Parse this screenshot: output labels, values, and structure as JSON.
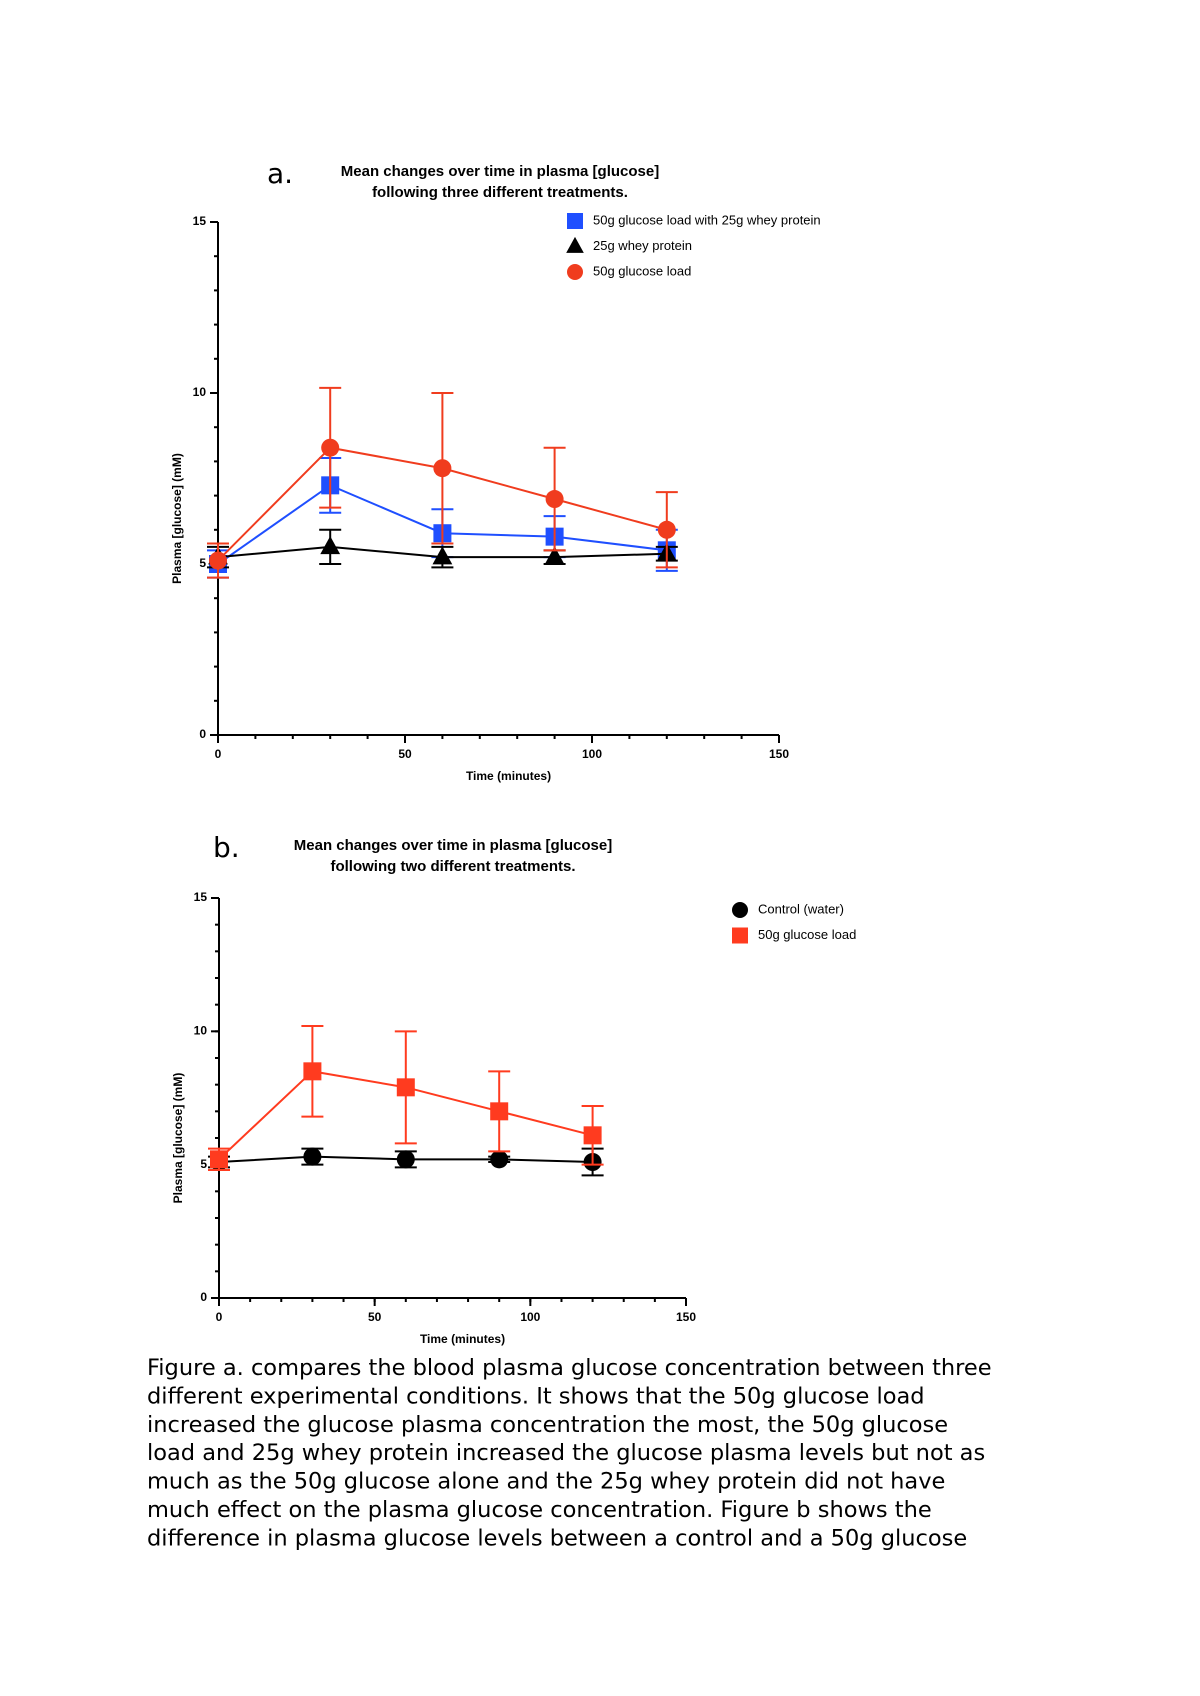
{
  "chart_data": [
    {
      "type": "line",
      "panel": "a.",
      "title": [
        "Mean changes over time in plasma [glucose]",
        "following three different treatments."
      ],
      "x_label": "Time (minutes)",
      "y_label": "Plasma [glucose] (mM)",
      "x": [
        0,
        30,
        60,
        90,
        120
      ],
      "xlim": [
        0,
        150
      ],
      "xticks": [
        0,
        50,
        100,
        150
      ],
      "ylim": [
        0,
        15
      ],
      "yticks": [
        0,
        5,
        10,
        15
      ],
      "legend": "upper right",
      "series": [
        {
          "name": "50g glucose load with 25g whey protein",
          "color": "#1f4fff",
          "marker": "square",
          "values": [
            5.0,
            7.3,
            5.9,
            5.8,
            5.4
          ],
          "errors": [
            0.4,
            0.8,
            0.7,
            0.6,
            0.6
          ]
        },
        {
          "name": "25g whey protein",
          "color": "#000000",
          "marker": "triangle",
          "values": [
            5.2,
            5.5,
            5.2,
            5.2,
            5.3
          ],
          "errors": [
            0.3,
            0.5,
            0.3,
            0.2,
            0.2
          ]
        },
        {
          "name": "50g glucose load",
          "color": "#f03c1e",
          "marker": "circle",
          "values": [
            5.1,
            8.4,
            7.8,
            6.9,
            6.0
          ],
          "errors": [
            0.5,
            1.75,
            2.2,
            1.5,
            1.1
          ]
        }
      ]
    },
    {
      "type": "line",
      "panel": "b.",
      "title": [
        "Mean changes over time in plasma [glucose]",
        "following two different treatments."
      ],
      "x_label": "Time (minutes)",
      "y_label": "Plasma [glucose] (mM)",
      "x": [
        0,
        30,
        60,
        90,
        120
      ],
      "xlim": [
        0,
        150
      ],
      "xticks": [
        0,
        50,
        100,
        150
      ],
      "ylim": [
        0,
        15
      ],
      "yticks": [
        0,
        5,
        10,
        15
      ],
      "legend": "upper right",
      "series": [
        {
          "name": "Control (water)",
          "color": "#000000",
          "marker": "circle",
          "values": [
            5.1,
            5.3,
            5.2,
            5.2,
            5.1
          ],
          "errors": [
            0.2,
            0.3,
            0.3,
            0.1,
            0.5
          ]
        },
        {
          "name": "50g glucose load",
          "color": "#ff3b1f",
          "marker": "square",
          "values": [
            5.2,
            8.5,
            7.9,
            7.0,
            6.1
          ],
          "errors": [
            0.4,
            1.7,
            2.1,
            1.5,
            1.1
          ]
        }
      ]
    }
  ],
  "caption": {
    "lines": [
      "Figure a. compares the blood plasma glucose concentration between three",
      "different experimental conditions. It shows that the 50g glucose load",
      "increased the glucose plasma concentration the most, the 50g glucose",
      "load and 25g whey protein increased the glucose plasma levels but not as",
      "much as the 50g glucose alone and the 25g whey protein did not have",
      "much effect on the plasma glucose concentration. Figure b shows the",
      "difference in plasma glucose levels between a control and a 50g glucose"
    ]
  }
}
